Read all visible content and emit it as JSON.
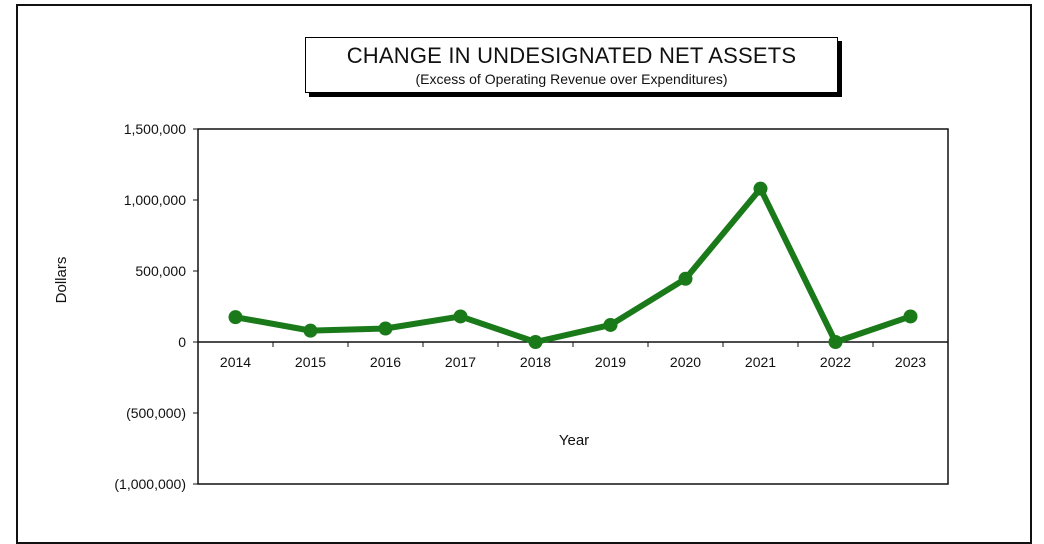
{
  "chart_data": {
    "type": "line",
    "title": "CHANGE IN UNDESIGNATED NET ASSETS",
    "subtitle": "(Excess of Operating Revenue over Expenditures)",
    "xlabel": "Year",
    "ylabel": "Dollars",
    "ylim": [
      -1000000,
      1500000
    ],
    "y_ticks": [
      1500000,
      1000000,
      500000,
      0,
      -500000,
      -1000000
    ],
    "y_tick_labels": [
      "1,500,000",
      "1,000,000",
      "500,000",
      "0",
      "(500,000)",
      "(1,000,000)"
    ],
    "grid": false,
    "legend": "none",
    "line_color": "#1a7a1a",
    "series": [
      {
        "x": [
          "2014",
          "2015",
          "2016",
          "2017",
          "2018",
          "2019",
          "2020",
          "2021",
          "2022",
          "2023"
        ],
        "values": [
          175000,
          80000,
          95000,
          180000,
          0,
          120000,
          445000,
          1080000,
          0,
          180000
        ]
      }
    ]
  }
}
